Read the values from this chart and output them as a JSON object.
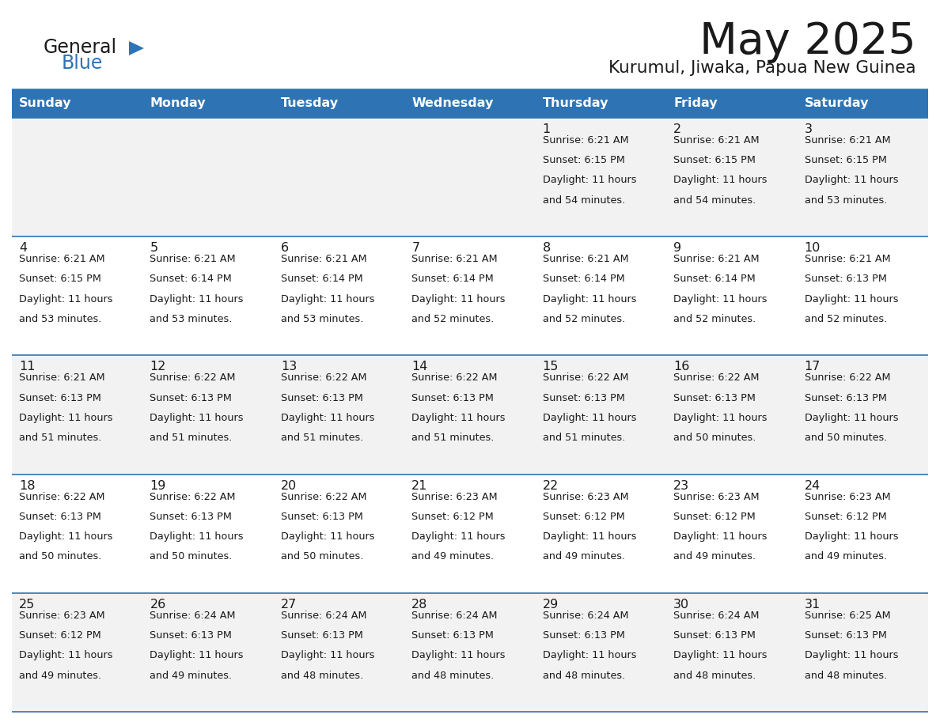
{
  "title": "May 2025",
  "subtitle": "Kurumul, Jiwaka, Papua New Guinea",
  "days_of_week": [
    "Sunday",
    "Monday",
    "Tuesday",
    "Wednesday",
    "Thursday",
    "Friday",
    "Saturday"
  ],
  "header_bg": "#2E74B5",
  "header_text": "#FFFFFF",
  "cell_bg_odd": "#F2F2F2",
  "cell_bg_even": "#FFFFFF",
  "divider_color": "#2E74B5",
  "weeks": [
    [
      null,
      null,
      null,
      null,
      {
        "day": 1,
        "sunrise": "6:21 AM",
        "sunset": "6:15 PM",
        "daylight_hrs": 11,
        "daylight_min": 54
      },
      {
        "day": 2,
        "sunrise": "6:21 AM",
        "sunset": "6:15 PM",
        "daylight_hrs": 11,
        "daylight_min": 54
      },
      {
        "day": 3,
        "sunrise": "6:21 AM",
        "sunset": "6:15 PM",
        "daylight_hrs": 11,
        "daylight_min": 53
      }
    ],
    [
      {
        "day": 4,
        "sunrise": "6:21 AM",
        "sunset": "6:15 PM",
        "daylight_hrs": 11,
        "daylight_min": 53
      },
      {
        "day": 5,
        "sunrise": "6:21 AM",
        "sunset": "6:14 PM",
        "daylight_hrs": 11,
        "daylight_min": 53
      },
      {
        "day": 6,
        "sunrise": "6:21 AM",
        "sunset": "6:14 PM",
        "daylight_hrs": 11,
        "daylight_min": 53
      },
      {
        "day": 7,
        "sunrise": "6:21 AM",
        "sunset": "6:14 PM",
        "daylight_hrs": 11,
        "daylight_min": 52
      },
      {
        "day": 8,
        "sunrise": "6:21 AM",
        "sunset": "6:14 PM",
        "daylight_hrs": 11,
        "daylight_min": 52
      },
      {
        "day": 9,
        "sunrise": "6:21 AM",
        "sunset": "6:14 PM",
        "daylight_hrs": 11,
        "daylight_min": 52
      },
      {
        "day": 10,
        "sunrise": "6:21 AM",
        "sunset": "6:13 PM",
        "daylight_hrs": 11,
        "daylight_min": 52
      }
    ],
    [
      {
        "day": 11,
        "sunrise": "6:21 AM",
        "sunset": "6:13 PM",
        "daylight_hrs": 11,
        "daylight_min": 51
      },
      {
        "day": 12,
        "sunrise": "6:22 AM",
        "sunset": "6:13 PM",
        "daylight_hrs": 11,
        "daylight_min": 51
      },
      {
        "day": 13,
        "sunrise": "6:22 AM",
        "sunset": "6:13 PM",
        "daylight_hrs": 11,
        "daylight_min": 51
      },
      {
        "day": 14,
        "sunrise": "6:22 AM",
        "sunset": "6:13 PM",
        "daylight_hrs": 11,
        "daylight_min": 51
      },
      {
        "day": 15,
        "sunrise": "6:22 AM",
        "sunset": "6:13 PM",
        "daylight_hrs": 11,
        "daylight_min": 51
      },
      {
        "day": 16,
        "sunrise": "6:22 AM",
        "sunset": "6:13 PM",
        "daylight_hrs": 11,
        "daylight_min": 50
      },
      {
        "day": 17,
        "sunrise": "6:22 AM",
        "sunset": "6:13 PM",
        "daylight_hrs": 11,
        "daylight_min": 50
      }
    ],
    [
      {
        "day": 18,
        "sunrise": "6:22 AM",
        "sunset": "6:13 PM",
        "daylight_hrs": 11,
        "daylight_min": 50
      },
      {
        "day": 19,
        "sunrise": "6:22 AM",
        "sunset": "6:13 PM",
        "daylight_hrs": 11,
        "daylight_min": 50
      },
      {
        "day": 20,
        "sunrise": "6:22 AM",
        "sunset": "6:13 PM",
        "daylight_hrs": 11,
        "daylight_min": 50
      },
      {
        "day": 21,
        "sunrise": "6:23 AM",
        "sunset": "6:12 PM",
        "daylight_hrs": 11,
        "daylight_min": 49
      },
      {
        "day": 22,
        "sunrise": "6:23 AM",
        "sunset": "6:12 PM",
        "daylight_hrs": 11,
        "daylight_min": 49
      },
      {
        "day": 23,
        "sunrise": "6:23 AM",
        "sunset": "6:12 PM",
        "daylight_hrs": 11,
        "daylight_min": 49
      },
      {
        "day": 24,
        "sunrise": "6:23 AM",
        "sunset": "6:12 PM",
        "daylight_hrs": 11,
        "daylight_min": 49
      }
    ],
    [
      {
        "day": 25,
        "sunrise": "6:23 AM",
        "sunset": "6:12 PM",
        "daylight_hrs": 11,
        "daylight_min": 49
      },
      {
        "day": 26,
        "sunrise": "6:24 AM",
        "sunset": "6:13 PM",
        "daylight_hrs": 11,
        "daylight_min": 49
      },
      {
        "day": 27,
        "sunrise": "6:24 AM",
        "sunset": "6:13 PM",
        "daylight_hrs": 11,
        "daylight_min": 48
      },
      {
        "day": 28,
        "sunrise": "6:24 AM",
        "sunset": "6:13 PM",
        "daylight_hrs": 11,
        "daylight_min": 48
      },
      {
        "day": 29,
        "sunrise": "6:24 AM",
        "sunset": "6:13 PM",
        "daylight_hrs": 11,
        "daylight_min": 48
      },
      {
        "day": 30,
        "sunrise": "6:24 AM",
        "sunset": "6:13 PM",
        "daylight_hrs": 11,
        "daylight_min": 48
      },
      {
        "day": 31,
        "sunrise": "6:25 AM",
        "sunset": "6:13 PM",
        "daylight_hrs": 11,
        "daylight_min": 48
      }
    ]
  ]
}
